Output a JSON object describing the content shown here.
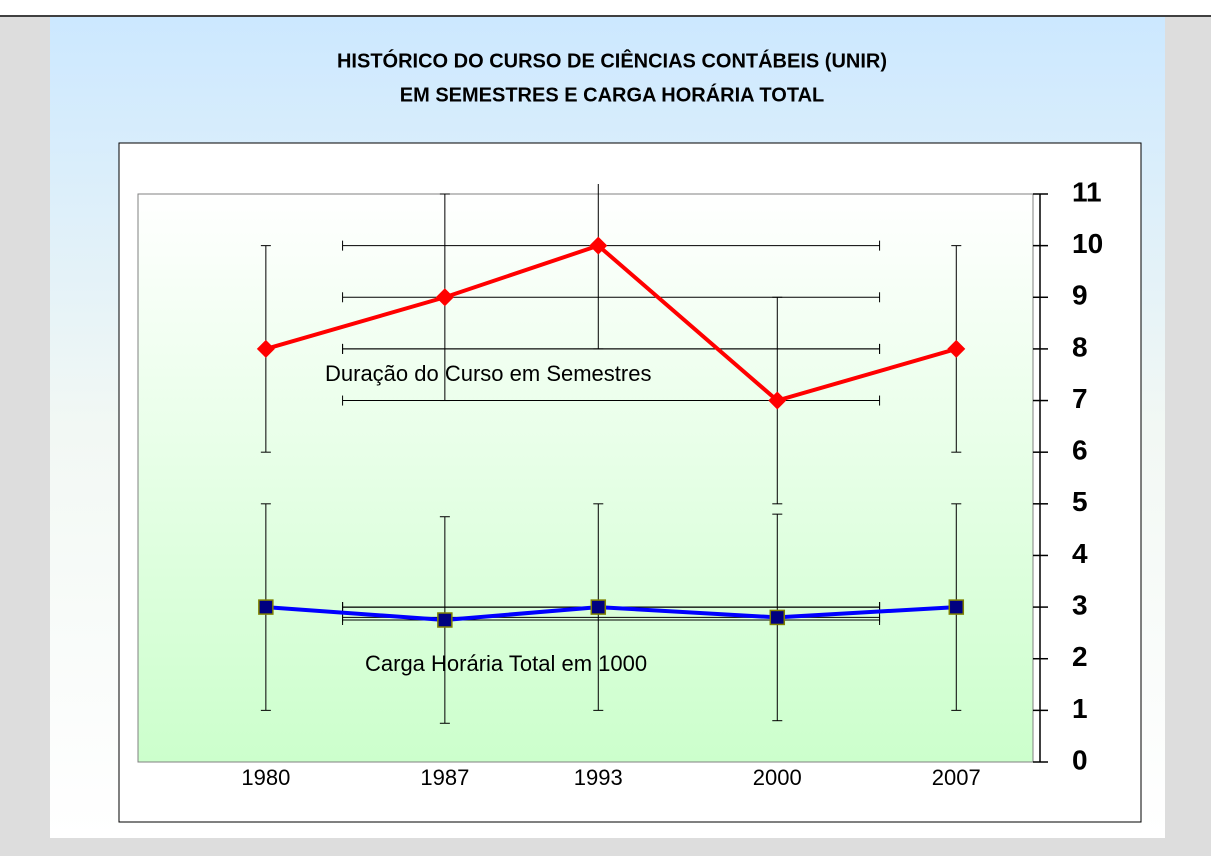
{
  "chart_data": {
    "type": "line",
    "title": [
      "HISTÓRICO DO CURSO DE CIÊNCIAS CONTÁBEIS (UNIR)",
      "EM SEMESTRES E CARGA HORÁRIA TOTAL"
    ],
    "x": [
      1980,
      1987,
      1993,
      2000,
      2007
    ],
    "xlim": [
      1975,
      2010
    ],
    "xticks": [
      1980,
      1987,
      1993,
      2000,
      2007
    ],
    "ylim": [
      0,
      11
    ],
    "yticks": [
      0,
      1,
      2,
      3,
      4,
      5,
      6,
      7,
      8,
      9,
      10,
      11
    ],
    "x_error_bars": {
      "from": 1983,
      "to": 2004
    },
    "series": [
      {
        "name": "Duração do Curso em Semestres",
        "color": "#ff0000",
        "marker": "diamond",
        "values": [
          8,
          9,
          10,
          7,
          8
        ],
        "yerr": 2
      },
      {
        "name": "Carga Horária Total em 1000",
        "color": "#0000ff",
        "marker": "square",
        "values": [
          3,
          2.75,
          3,
          2.8,
          3
        ],
        "yerr": 2
      }
    ]
  }
}
